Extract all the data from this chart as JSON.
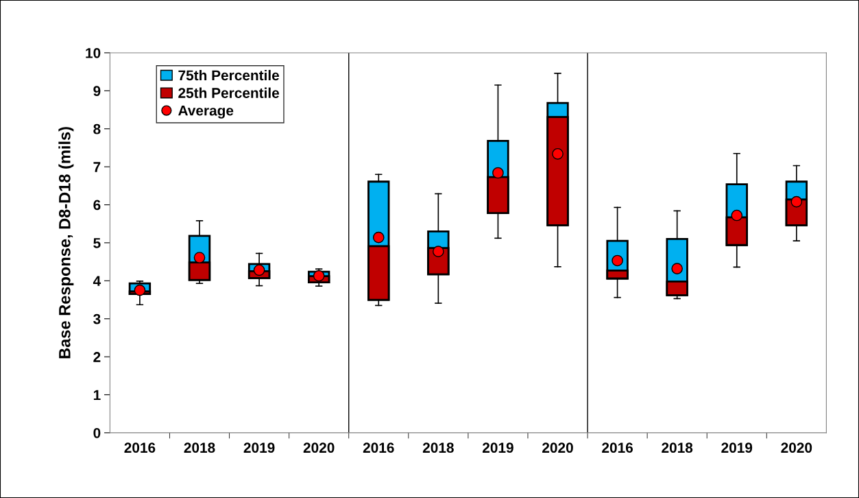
{
  "chart_data": {
    "type": "box",
    "ylabel": "Base Response, D8-D18 (mils)",
    "categories": [
      "2016",
      "2018",
      "2019",
      "2020",
      "2016",
      "2018",
      "2019",
      "2020",
      "2016",
      "2018",
      "2019",
      "2020"
    ],
    "series": [
      {
        "name": "75th Percentile",
        "type": "box",
        "color": "#00b0f0",
        "boxes": [
          {
            "low": 3.37,
            "q1": 3.65,
            "median": 3.72,
            "q3": 3.93,
            "high": 3.99
          },
          {
            "low": 3.93,
            "q1": 4.02,
            "median": 4.48,
            "q3": 5.18,
            "high": 5.58
          },
          {
            "low": 3.87,
            "q1": 4.07,
            "median": 4.25,
            "q3": 4.44,
            "high": 4.72
          },
          {
            "low": 3.86,
            "q1": 3.96,
            "median": 4.12,
            "q3": 4.24,
            "high": 4.31
          },
          {
            "low": 3.35,
            "q1": 3.5,
            "median": 4.91,
            "q3": 6.61,
            "high": 6.8
          },
          {
            "low": 3.41,
            "q1": 4.17,
            "median": 4.86,
            "q3": 5.3,
            "high": 6.29
          },
          {
            "low": 5.12,
            "q1": 5.78,
            "median": 6.73,
            "q3": 7.68,
            "high": 9.15
          },
          {
            "low": 4.37,
            "q1": 5.46,
            "median": 8.31,
            "q3": 8.68,
            "high": 9.46
          },
          {
            "low": 3.56,
            "q1": 4.06,
            "median": 4.27,
            "q3": 5.05,
            "high": 5.93
          },
          {
            "low": 3.53,
            "q1": 3.62,
            "median": 3.98,
            "q3": 5.1,
            "high": 5.84
          },
          {
            "low": 4.36,
            "q1": 4.94,
            "median": 5.67,
            "q3": 6.54,
            "high": 7.35
          },
          {
            "low": 5.05,
            "q1": 5.46,
            "median": 6.14,
            "q3": 6.61,
            "high": 7.03
          }
        ]
      },
      {
        "name": "25th Percentile",
        "type": "bar",
        "color": "#c00000",
        "base": [
          3.65,
          4.02,
          4.07,
          3.96,
          3.5,
          4.17,
          5.78,
          5.46,
          4.06,
          3.62,
          4.94,
          5.46
        ],
        "values": [
          0.07,
          0.46,
          0.18,
          0.16,
          1.41,
          0.69,
          0.95,
          2.85,
          0.21,
          0.36,
          0.73,
          0.68
        ]
      },
      {
        "name": "Average",
        "type": "scatter",
        "color": "#ff0000",
        "marker": "circle",
        "values": [
          3.75,
          4.61,
          4.28,
          4.13,
          5.14,
          4.77,
          6.84,
          7.34,
          4.53,
          4.32,
          5.72,
          6.08
        ]
      }
    ],
    "ylim": [
      0,
      10
    ],
    "yticks": [
      0,
      1,
      2,
      3,
      4,
      5,
      6,
      7,
      8,
      9,
      10
    ],
    "grid": false,
    "legend": "top left"
  }
}
